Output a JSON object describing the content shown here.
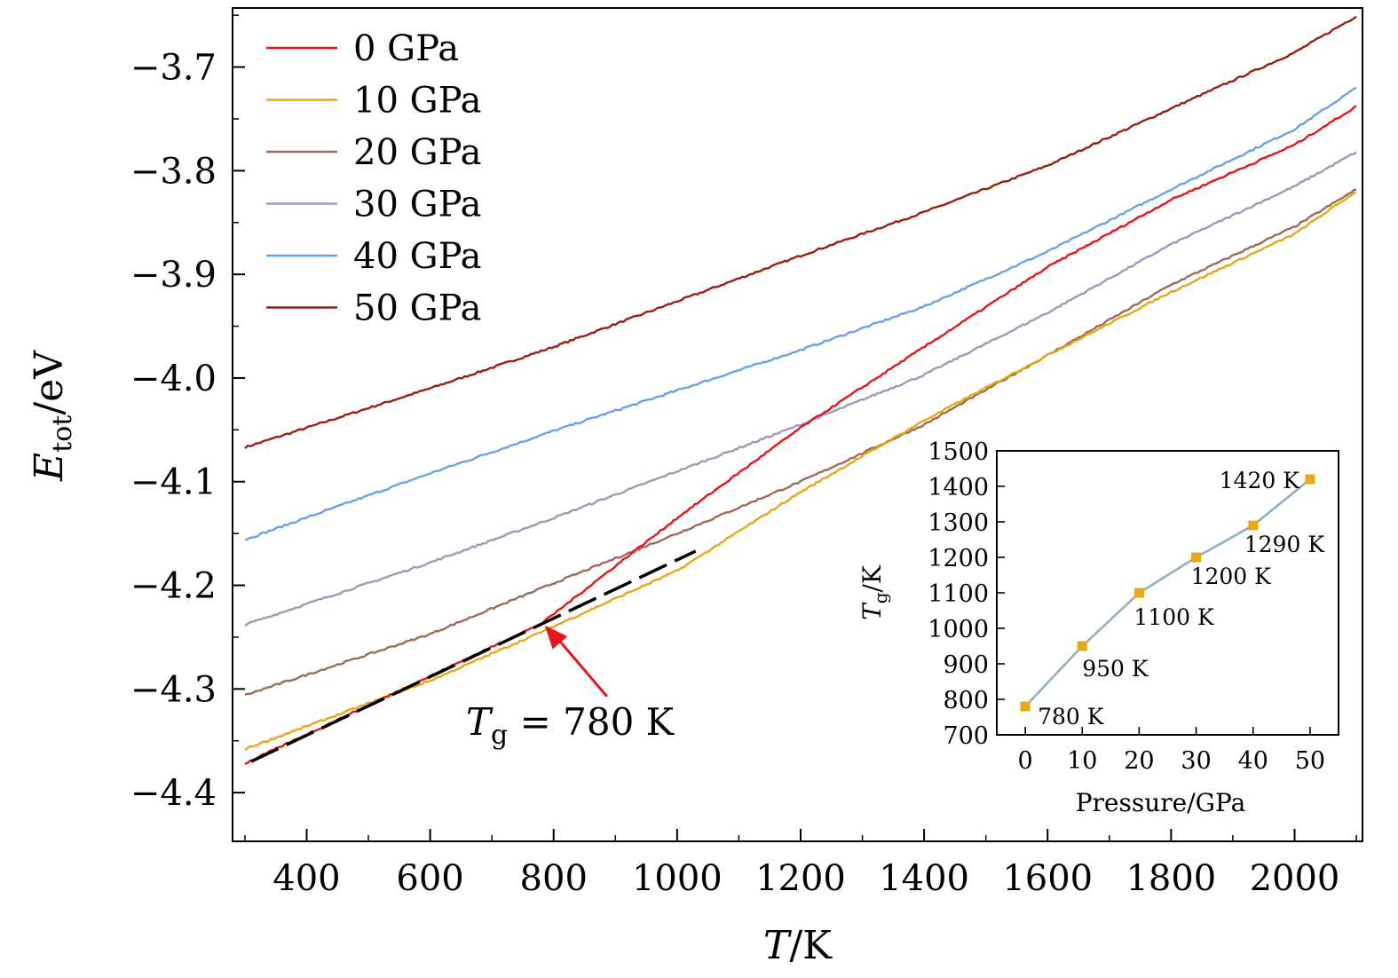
{
  "chart_data": [
    {
      "type": "line",
      "xlabel_main": "T",
      "xlabel_unit": "/K",
      "ylabel_main": "E",
      "ylabel_sub": "tot",
      "ylabel_unit": "/eV",
      "xlim": [
        280,
        2110
      ],
      "ylim": [
        -4.447,
        -3.643
      ],
      "xticks": [
        400,
        600,
        800,
        1000,
        1200,
        1400,
        1600,
        1800,
        2000
      ],
      "xtick_labels": [
        "400",
        "600",
        "800",
        "1000",
        "1200",
        "1400",
        "1600",
        "1800",
        "2000"
      ],
      "yticks": [
        -3.7,
        -3.8,
        -3.9,
        -4.0,
        -4.1,
        -4.2,
        -4.3,
        -4.4
      ],
      "ytick_labels": [
        "−3.7",
        "−3.8",
        "−3.9",
        "−4.0",
        "−4.1",
        "−4.2",
        "−4.3",
        "−4.4"
      ],
      "legend_position": "top-left",
      "grid": false,
      "series": [
        {
          "name": "0 GPa",
          "color": "#e8151b",
          "x": [
            300,
            780,
            1000,
            1200,
            1400,
            1600,
            1800,
            2000,
            2100
          ],
          "y": [
            -4.372,
            -4.237,
            -4.135,
            -4.048,
            -3.97,
            -3.893,
            -3.828,
            -3.775,
            -3.738
          ]
        },
        {
          "name": "10 GPa",
          "color": "#e6a817",
          "x": [
            300,
            600,
            780,
            1000,
            1200,
            1400,
            1600,
            1800,
            2000,
            2100
          ],
          "y": [
            -4.358,
            -4.292,
            -4.245,
            -4.186,
            -4.11,
            -4.041,
            -3.978,
            -3.917,
            -3.861,
            -3.82
          ]
        },
        {
          "name": "20 GPa",
          "color": "#9e6b58",
          "x": [
            300,
            600,
            800,
            1000,
            1200,
            1400,
            1600,
            1800,
            2000,
            2100
          ],
          "y": [
            -4.306,
            -4.247,
            -4.198,
            -4.15,
            -4.1,
            -4.045,
            -3.978,
            -3.91,
            -3.854,
            -3.818
          ]
        },
        {
          "name": "30 GPa",
          "color": "#9c9ab8",
          "x": [
            300,
            600,
            800,
            1000,
            1200,
            1400,
            1600,
            1800,
            2000,
            2100
          ],
          "y": [
            -4.238,
            -4.178,
            -4.135,
            -4.09,
            -4.045,
            -3.997,
            -3.937,
            -3.871,
            -3.815,
            -3.782
          ]
        },
        {
          "name": "40 GPa",
          "color": "#6aa2e8",
          "x": [
            300,
            600,
            800,
            1000,
            1200,
            1400,
            1600,
            1800,
            2000,
            2100
          ],
          "y": [
            -4.156,
            -4.092,
            -4.051,
            -4.012,
            -3.973,
            -3.931,
            -3.878,
            -3.818,
            -3.76,
            -3.72
          ]
        },
        {
          "name": "50 GPa",
          "color": "#9a1f10",
          "x": [
            300,
            600,
            800,
            1000,
            1200,
            1400,
            1600,
            1800,
            2000,
            2100
          ],
          "y": [
            -4.067,
            -4.01,
            -3.97,
            -3.926,
            -3.882,
            -3.84,
            -3.795,
            -3.74,
            -3.686,
            -3.651
          ]
        }
      ],
      "fit_line": {
        "x": [
          310,
          1030
        ],
        "y": [
          -4.37,
          -4.167
        ],
        "color": "#000000",
        "style": "dashed"
      },
      "annotation": {
        "text_main": "T",
        "text_sub": "g",
        "text_rest": " = 780 K",
        "x": 780,
        "y": -4.237,
        "arrow_color": "#e8151b"
      }
    },
    {
      "type": "line",
      "xlabel": "Pressure/GPa",
      "ylabel_main": "T",
      "ylabel_sub": "g",
      "ylabel_unit": "/K",
      "xlim": [
        -5,
        55
      ],
      "ylim": [
        700,
        1500
      ],
      "xticks": [
        0,
        10,
        20,
        30,
        40,
        50
      ],
      "xtick_labels": [
        "0",
        "10",
        "20",
        "30",
        "40",
        "50"
      ],
      "yticks": [
        700,
        800,
        900,
        1000,
        1100,
        1200,
        1300,
        1400,
        1500
      ],
      "ytick_labels": [
        "700",
        "800",
        "900",
        "1000",
        "1100",
        "1200",
        "1300",
        "1400",
        "1500"
      ],
      "line_color": "#8fb0c0",
      "marker_color": "#e6a817",
      "points": [
        {
          "x": 0,
          "y": 780,
          "label": "780 K"
        },
        {
          "x": 10,
          "y": 950,
          "label": "950 K"
        },
        {
          "x": 20,
          "y": 1100,
          "label": "1100 K"
        },
        {
          "x": 30,
          "y": 1200,
          "label": "1200 K"
        },
        {
          "x": 40,
          "y": 1290,
          "label": "1290 K"
        },
        {
          "x": 50,
          "y": 1420,
          "label": "1420 K"
        }
      ]
    }
  ]
}
